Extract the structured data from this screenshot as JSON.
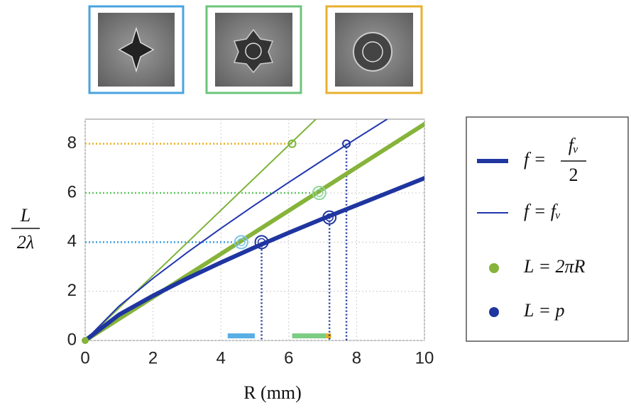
{
  "chart_data": {
    "type": "line",
    "xlabel": "R (mm)",
    "ylabel": {
      "num": "L",
      "den": "2λ"
    },
    "xlim": [
      0,
      10
    ],
    "ylim": [
      0,
      9
    ],
    "xticks": [
      0,
      2,
      4,
      6,
      8,
      10
    ],
    "yticks": [
      0,
      2,
      4,
      6,
      8
    ],
    "grid": true,
    "series": [
      {
        "color": "#1f35a0",
        "width": 6,
        "x": [
          0,
          1,
          2,
          3,
          4,
          5,
          6,
          7,
          8,
          9,
          10
        ],
        "values": [
          0,
          1.05,
          1.82,
          2.52,
          3.17,
          3.79,
          4.38,
          4.95,
          5.5,
          6.05,
          6.6
        ]
      },
      {
        "color": "#2236b0",
        "width": 2,
        "x": [
          0,
          1,
          2,
          3,
          4,
          5,
          6,
          7,
          8,
          8.9
        ],
        "values": [
          0,
          1.4,
          2.53,
          3.57,
          4.56,
          5.51,
          6.43,
          7.33,
          8.22,
          9
        ]
      },
      {
        "color": "#86b33a",
        "width": 6,
        "x": [
          0,
          10
        ],
        "values": [
          0,
          8.8
        ]
      },
      {
        "color": "#7db33a",
        "width": 2,
        "x": [
          0,
          6.8
        ],
        "values": [
          0,
          9
        ]
      }
    ],
    "guides_h": [
      {
        "y": 4,
        "x": 4.6,
        "color": "#3aa0e0"
      },
      {
        "y": 6,
        "x": 6.9,
        "color": "#5ec45e"
      },
      {
        "y": 8,
        "x": 6.1,
        "color": "#e8b020"
      }
    ],
    "guides_v": [
      {
        "x": 5.2,
        "y": 4,
        "color": "#1f35a0"
      },
      {
        "x": 7.2,
        "y": 5,
        "color": "#1f35a0"
      },
      {
        "x": 7.7,
        "y": 8,
        "color": "#1f35a0"
      }
    ],
    "markers": [
      {
        "x": 4.6,
        "y": 4,
        "color": "#7cc6e8",
        "r": 9
      },
      {
        "x": 6.9,
        "y": 6,
        "color": "#8ed69a",
        "r": 9
      },
      {
        "x": 6.1,
        "y": 8,
        "color": "#7db33a",
        "r": 5
      },
      {
        "x": 5.2,
        "y": 4,
        "color": "#1f35a0",
        "r": 9
      },
      {
        "x": 7.2,
        "y": 5,
        "color": "#1f35a0",
        "r": 9
      },
      {
        "x": 7.7,
        "y": 8,
        "color": "#1f35a0",
        "r": 5
      }
    ],
    "bands": [
      {
        "x": [
          4.2,
          5.0
        ],
        "color": "#5aaee6"
      },
      {
        "x": [
          6.1,
          7.1
        ],
        "color": "#7ccc84"
      },
      {
        "x": [
          7.1,
          7.25
        ],
        "color": "#e8b020"
      }
    ],
    "legend": [
      {
        "lhs": "f =",
        "num": "fᵥ",
        "den": "2",
        "color": "#1f35a0",
        "style": "thick"
      },
      {
        "text": "f = fᵥ",
        "color": "#2236b0",
        "style": "thin"
      },
      {
        "text": "L = 2πR",
        "color": "#86b33a",
        "style": "dot"
      },
      {
        "text": "L = p",
        "color": "#1f35a0",
        "style": "dot"
      }
    ]
  }
}
